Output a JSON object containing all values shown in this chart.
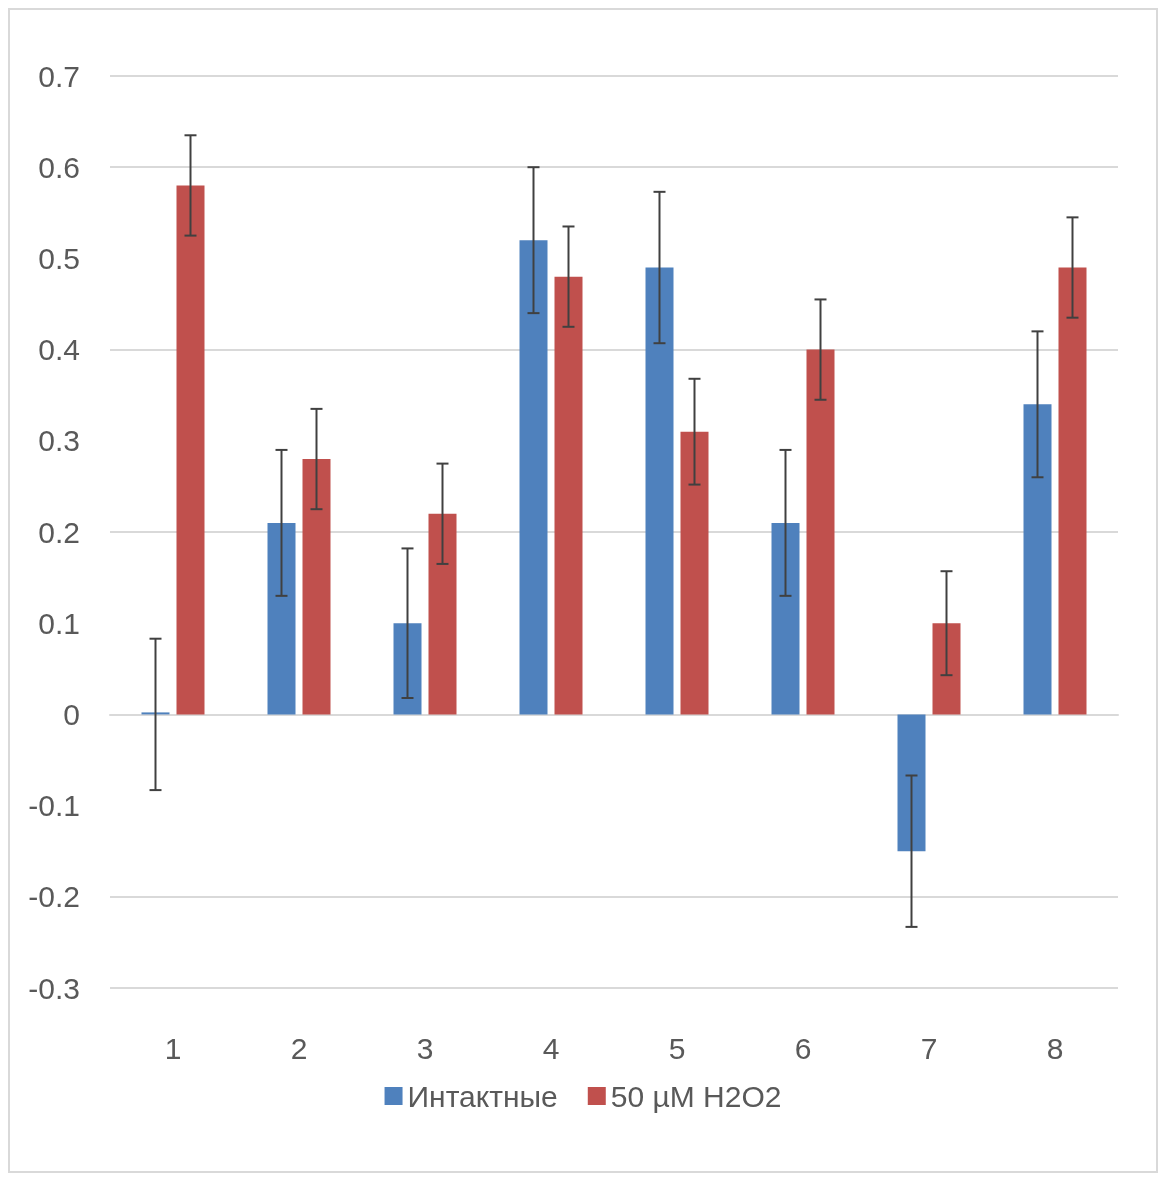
{
  "chart_data": {
    "type": "bar",
    "categories": [
      "1",
      "2",
      "3",
      "4",
      "5",
      "6",
      "7",
      "8"
    ],
    "series": [
      {
        "name": "Интактные",
        "color": "#4f81bd",
        "values": [
          0,
          0.21,
          0.1,
          0.52,
          0.49,
          0.21,
          -0.15,
          0.34
        ],
        "errors": [
          0.083,
          0.08,
          0.082,
          0.08,
          0.083,
          0.08,
          0.083,
          0.08
        ]
      },
      {
        "name": "50 µM H2O2",
        "color": "#c0504d",
        "values": [
          0.58,
          0.28,
          0.22,
          0.48,
          0.31,
          0.4,
          0.1,
          0.49
        ],
        "errors": [
          0.055,
          0.055,
          0.055,
          0.055,
          0.058,
          0.055,
          0.057,
          0.055
        ]
      }
    ],
    "ylim": [
      -0.3,
      0.7
    ],
    "yticks": [
      -0.3,
      -0.2,
      -0.1,
      0,
      0.1,
      0.2,
      0.3,
      0.4,
      0.5,
      0.6,
      0.7
    ],
    "grid": "y",
    "legend": "bottom"
  }
}
